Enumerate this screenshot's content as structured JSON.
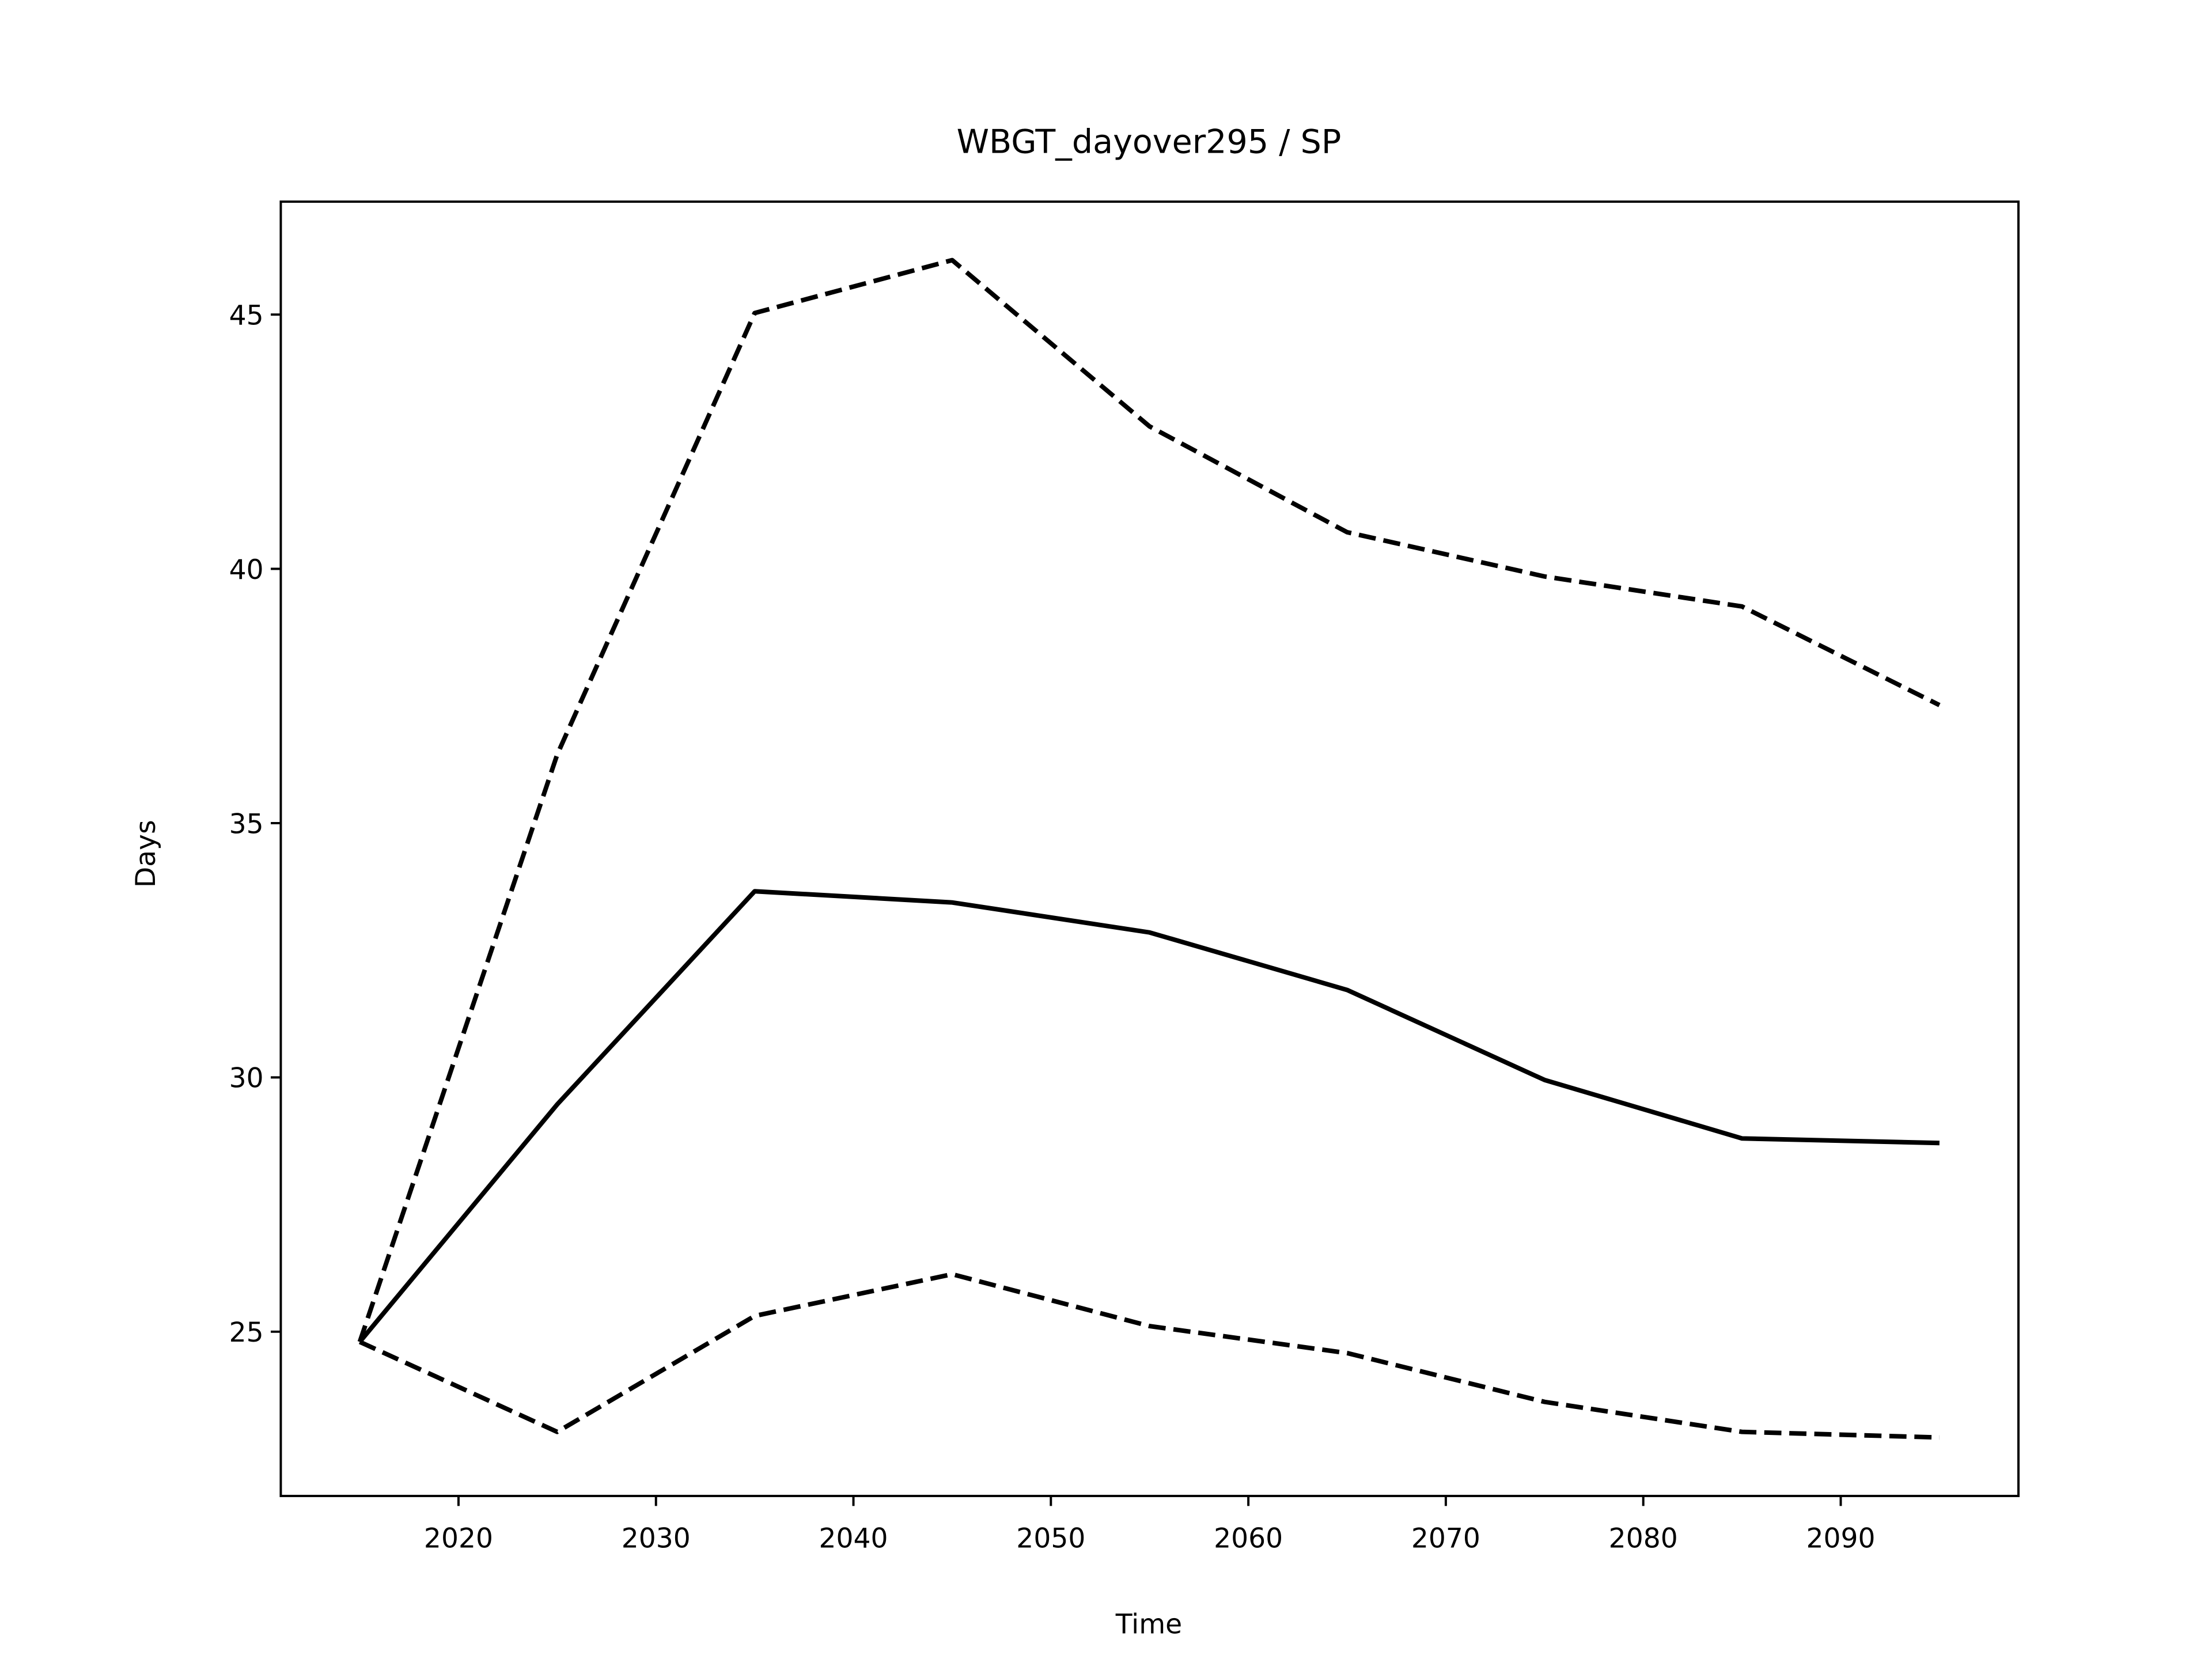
{
  "chart_data": {
    "type": "line",
    "title": "WBGT_dayover295 / SP",
    "x_label": "Time",
    "y_label": "Days",
    "x": [
      2015,
      2025,
      2035,
      2045,
      2055,
      2065,
      2075,
      2085,
      2095
    ],
    "series": [
      {
        "color": "#000000",
        "dashed": false,
        "values": [
          24.8,
          29.47,
          33.66,
          33.44,
          32.85,
          31.72,
          29.95,
          28.8,
          28.71
        ]
      },
      {
        "color": "#000000",
        "dashed": true,
        "values": [
          24.8,
          36.35,
          45.03,
          46.07,
          42.8,
          40.72,
          39.85,
          39.26,
          37.32
        ]
      },
      {
        "color": "#000000",
        "dashed": true,
        "values": [
          24.8,
          23.03,
          25.31,
          26.13,
          25.11,
          24.58,
          23.62,
          23.03,
          22.92
        ]
      }
    ],
    "xlim": [
      2011,
      2099
    ],
    "xticks": [
      2020,
      2030,
      2040,
      2050,
      2060,
      2070,
      2080,
      2090
    ],
    "ylim": [
      21.77,
      47.22
    ],
    "yticks": [
      25,
      30,
      35,
      40,
      45
    ],
    "grid": false
  }
}
